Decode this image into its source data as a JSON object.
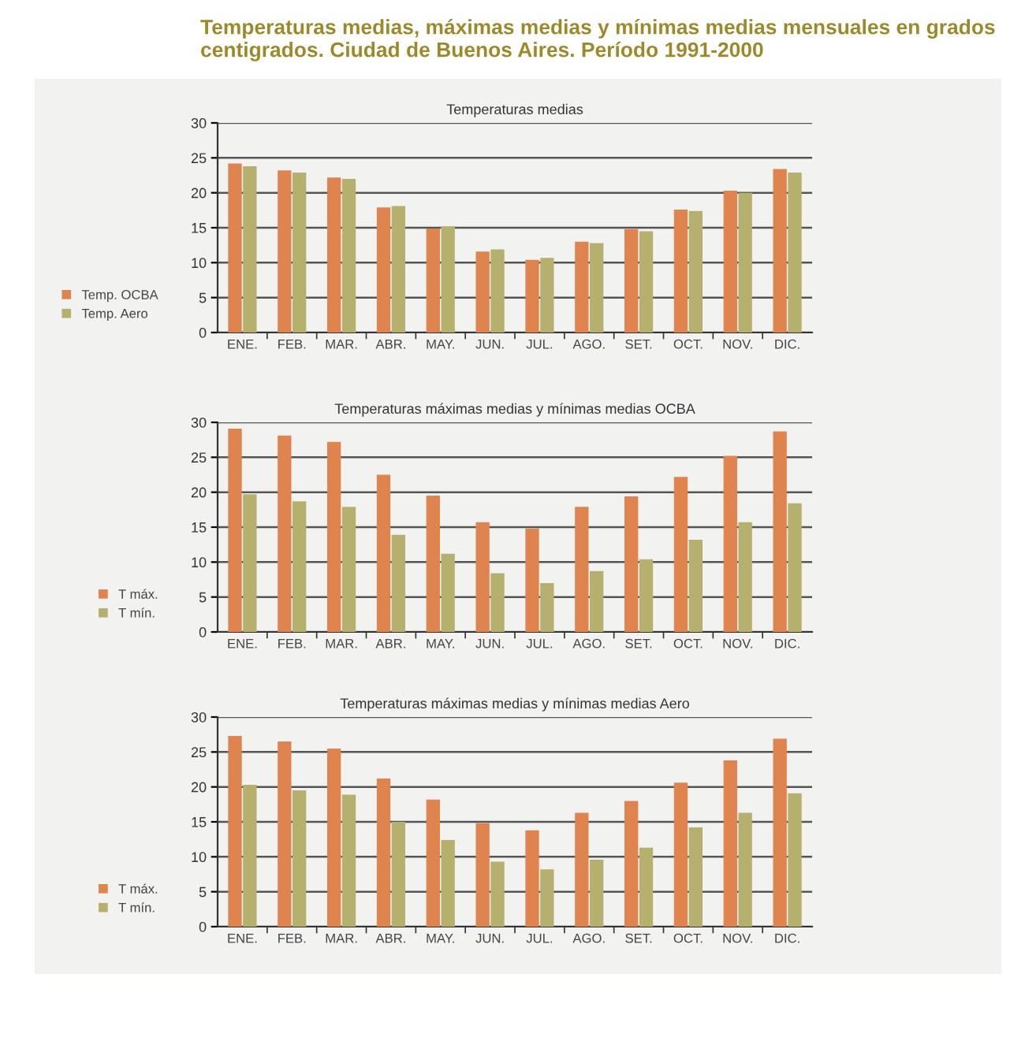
{
  "chart_data": [
    {
      "type": "bar",
      "title": "Temperaturas medias, máximas medias y mínimas medias mensuales en grados centigrados. Ciudad de Buenos Aires. Período 1991-2000",
      "subtitle": "Temperaturas medias",
      "categories": [
        "ENE.",
        "FEB.",
        "MAR.",
        "ABR.",
        "MAY.",
        "JUN.",
        "JUL.",
        "AGO.",
        "SET.",
        "OCT.",
        "NOV.",
        "DIC."
      ],
      "series": [
        {
          "name": "Temp. OCBA",
          "color": "#e0844f",
          "values": [
            24.2,
            23.2,
            22.2,
            17.9,
            14.9,
            11.6,
            10.4,
            13.0,
            14.8,
            17.6,
            20.3,
            23.4
          ]
        },
        {
          "name": "Temp. Aero",
          "color": "#b5b06e",
          "values": [
            23.8,
            22.9,
            22.0,
            18.1,
            15.2,
            11.9,
            10.7,
            12.8,
            14.5,
            17.4,
            20.0,
            22.9
          ]
        }
      ],
      "ylim": [
        0,
        30
      ],
      "yticks": [
        0,
        5,
        10,
        15,
        20,
        25,
        30
      ],
      "grid": "y",
      "legend": "left"
    },
    {
      "type": "bar",
      "subtitle": "Temperaturas máximas medias y mínimas medias OCBA",
      "categories": [
        "ENE.",
        "FEB.",
        "MAR.",
        "ABR.",
        "MAY.",
        "JUN.",
        "JUL.",
        "AGO.",
        "SET.",
        "OCT.",
        "NOV.",
        "DIC."
      ],
      "series": [
        {
          "name": "T máx.",
          "color": "#e0844f",
          "values": [
            29.1,
            28.1,
            27.2,
            22.5,
            19.5,
            15.7,
            14.8,
            17.9,
            19.4,
            22.2,
            25.2,
            28.7
          ]
        },
        {
          "name": "T mín.",
          "color": "#b5b06e",
          "values": [
            19.7,
            18.7,
            17.9,
            13.9,
            11.2,
            8.4,
            7.0,
            8.7,
            10.4,
            13.2,
            15.7,
            18.4
          ]
        }
      ],
      "ylim": [
        0,
        30
      ],
      "yticks": [
        0,
        5,
        10,
        15,
        20,
        25,
        30
      ],
      "grid": "y",
      "legend": "left"
    },
    {
      "type": "bar",
      "subtitle": "Temperaturas máximas medias y mínimas medias Aero",
      "categories": [
        "ENE.",
        "FEB.",
        "MAR.",
        "ABR.",
        "MAY.",
        "JUN.",
        "JUL.",
        "AGO.",
        "SET.",
        "OCT.",
        "NOV.",
        "DIC."
      ],
      "series": [
        {
          "name": "T máx.",
          "color": "#e0844f",
          "values": [
            27.3,
            26.5,
            25.5,
            21.2,
            18.2,
            14.8,
            13.8,
            16.3,
            18.0,
            20.6,
            23.8,
            26.9
          ]
        },
        {
          "name": "T mín.",
          "color": "#b5b06e",
          "values": [
            20.3,
            19.5,
            18.9,
            15.0,
            12.4,
            9.3,
            8.2,
            9.6,
            11.3,
            14.2,
            16.3,
            19.1
          ]
        }
      ],
      "ylim": [
        0,
        30
      ],
      "yticks": [
        0,
        5,
        10,
        15,
        20,
        25,
        30
      ],
      "grid": "y",
      "legend": "left"
    }
  ]
}
